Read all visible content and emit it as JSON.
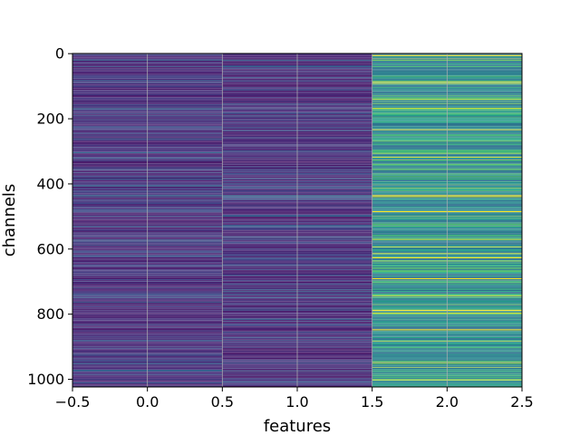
{
  "chart_data": {
    "type": "heatmap",
    "title": "",
    "xlabel": "features",
    "ylabel": "channels",
    "xlim": [
      -0.5,
      2.5
    ],
    "ylim": [
      1023.5,
      -0.5
    ],
    "y_inverted": true,
    "grid": true,
    "colormap": "viridis",
    "x_ticks": [
      {
        "value": -0.5,
        "label": "−0.5"
      },
      {
        "value": 0.0,
        "label": "0.0"
      },
      {
        "value": 0.5,
        "label": "0.5"
      },
      {
        "value": 1.0,
        "label": "1.0"
      },
      {
        "value": 1.5,
        "label": "1.5"
      },
      {
        "value": 2.0,
        "label": "2.0"
      },
      {
        "value": 2.5,
        "label": "2.5"
      }
    ],
    "y_ticks": [
      {
        "value": 0,
        "label": "0"
      },
      {
        "value": 200,
        "label": "200"
      },
      {
        "value": 400,
        "label": "400"
      },
      {
        "value": 600,
        "label": "600"
      },
      {
        "value": 800,
        "label": "800"
      },
      {
        "value": 1000,
        "label": "1000"
      }
    ],
    "columns": [
      0,
      1,
      2
    ],
    "n_channels": 1024,
    "column_value_profile": {
      "base": [
        0.08,
        0.07,
        0.45
      ],
      "spread": [
        0.22,
        0.22,
        0.45
      ]
    },
    "highlight_bands": [
      {
        "channel": 20,
        "strength": 0.9
      },
      {
        "channel": 40,
        "strength": 0.85
      },
      {
        "channel": 75,
        "strength": 0.75
      },
      {
        "channel": 170,
        "strength": 0.85
      },
      {
        "channel": 190,
        "strength": 0.7
      },
      {
        "channel": 260,
        "strength": 0.7
      },
      {
        "channel": 320,
        "strength": 0.7
      },
      {
        "channel": 355,
        "strength": 0.65
      },
      {
        "channel": 385,
        "strength": 0.8
      },
      {
        "channel": 435,
        "strength": 1.0
      },
      {
        "channel": 440,
        "strength": 0.95
      },
      {
        "channel": 500,
        "strength": 0.95
      },
      {
        "channel": 530,
        "strength": 0.85
      },
      {
        "channel": 560,
        "strength": 0.85
      },
      {
        "channel": 650,
        "strength": 0.7
      },
      {
        "channel": 740,
        "strength": 0.8
      },
      {
        "channel": 750,
        "strength": 0.85
      },
      {
        "channel": 880,
        "strength": 0.7
      },
      {
        "channel": 950,
        "strength": 0.85
      },
      {
        "channel": 975,
        "strength": 0.8
      },
      {
        "channel": 1010,
        "strength": 0.75
      }
    ]
  }
}
